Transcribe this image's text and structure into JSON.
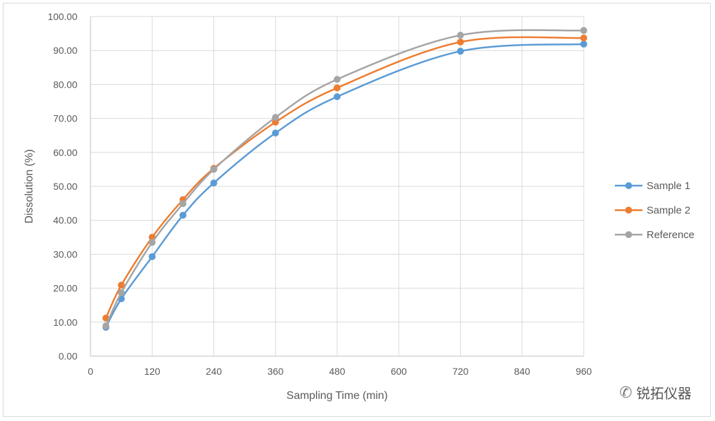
{
  "chart_data": {
    "type": "line",
    "title": "",
    "xlabel": "Sampling Time (min)",
    "ylabel": "Dissolution (%)",
    "x": [
      30,
      60,
      120,
      180,
      240,
      360,
      480,
      720,
      960
    ],
    "xlim": [
      0,
      960
    ],
    "ylim": [
      0,
      100
    ],
    "xticks": [
      "0",
      "120",
      "240",
      "360",
      "480",
      "600",
      "720",
      "840",
      "960"
    ],
    "yticks": [
      "0.00",
      "10.00",
      "20.00",
      "30.00",
      "40.00",
      "50.00",
      "60.00",
      "70.00",
      "80.00",
      "90.00",
      "100.00"
    ],
    "grid": true,
    "smooth": true,
    "legend_position": "right",
    "series": [
      {
        "name": "Sample 1",
        "color": "#5b9bd5",
        "values": [
          8.5,
          16.9,
          29.3,
          41.5,
          51.0,
          65.7,
          76.4,
          89.8,
          91.9
        ]
      },
      {
        "name": "Sample 2",
        "color": "#ed7d31",
        "values": [
          11.2,
          20.9,
          35.0,
          46.1,
          55.3,
          68.9,
          79.0,
          92.5,
          93.7
        ]
      },
      {
        "name": "Reference",
        "color": "#a5a5a5",
        "values": [
          8.9,
          18.7,
          33.5,
          44.9,
          55.0,
          70.3,
          81.5,
          94.5,
          95.9
        ]
      }
    ]
  },
  "watermark": {
    "text": "锐拓仪器",
    "icon": "wechat-icon"
  }
}
